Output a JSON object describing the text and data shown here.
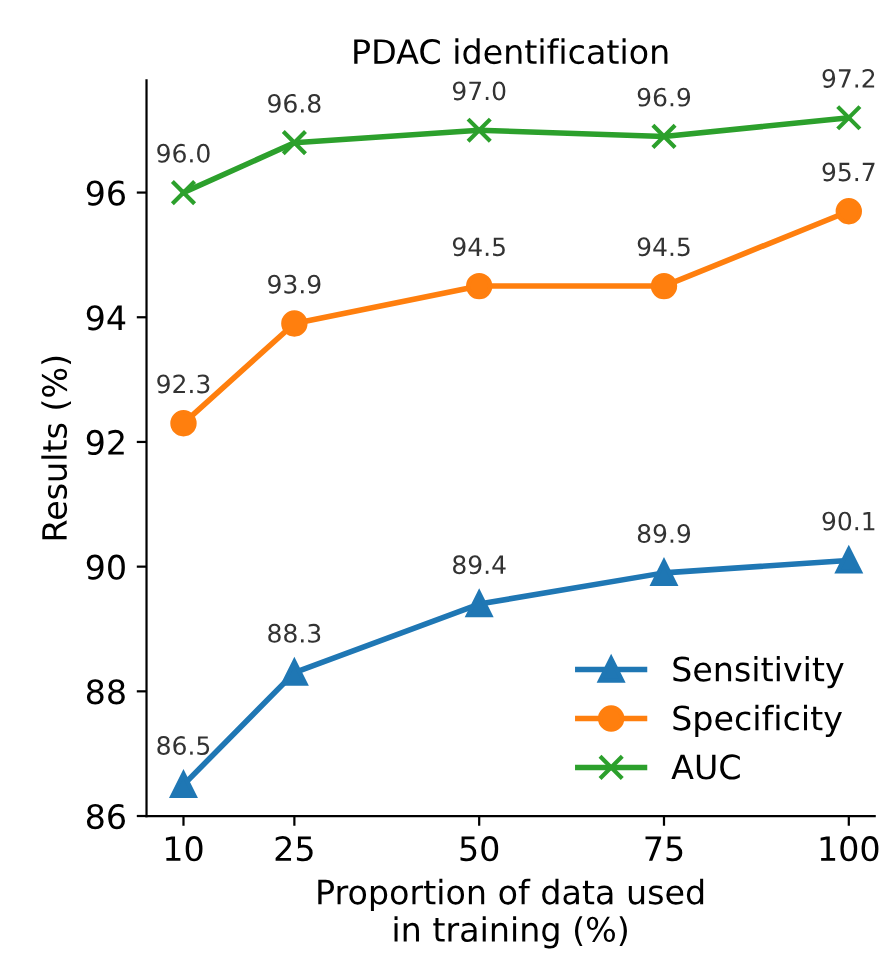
{
  "chart_data": {
    "type": "line",
    "title": "PDAC identification",
    "xlabel": "Proportion of data used\nin training (%)",
    "ylabel": "Results (%)",
    "x": [
      10,
      25,
      50,
      75,
      100
    ],
    "xlim": [
      5,
      103.5
    ],
    "xticks": [
      10,
      25,
      50,
      75,
      100
    ],
    "ylim": [
      86,
      97.8
    ],
    "yticks": [
      86,
      88,
      90,
      92,
      94,
      96
    ],
    "grid": false,
    "legend": "bottom right",
    "series": [
      {
        "name": "Sensitivity",
        "color": "#1f77b4",
        "marker": "triangle",
        "values": [
          86.5,
          88.3,
          89.4,
          89.9,
          90.1
        ],
        "value_labels": [
          "86.5",
          "88.3",
          "89.4",
          "89.9",
          "90.1"
        ]
      },
      {
        "name": "Specificity",
        "color": "#ff7f0e",
        "marker": "circle",
        "values": [
          92.3,
          93.9,
          94.5,
          94.5,
          95.7
        ],
        "value_labels": [
          "92.3",
          "93.9",
          "94.5",
          "94.5",
          "95.7"
        ]
      },
      {
        "name": "AUC",
        "color": "#2ca02c",
        "marker": "cross",
        "values": [
          96.0,
          96.8,
          97.0,
          96.9,
          97.2
        ],
        "value_labels": [
          "96.0",
          "96.8",
          "97.0",
          "96.9",
          "97.2"
        ]
      }
    ]
  }
}
